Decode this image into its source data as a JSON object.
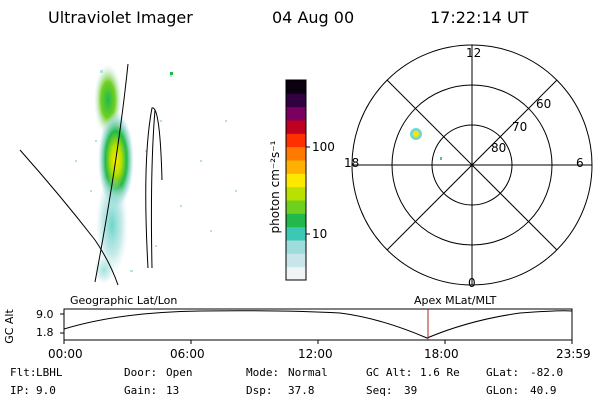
{
  "header": {
    "title": "Ultraviolet Imager",
    "date": "04 Aug 00",
    "time": "17:22:14 UT"
  },
  "colorbar": {
    "unit_label": "photon cm⁻²s⁻¹",
    "ticks": [
      "100",
      "10"
    ],
    "colors": [
      "#f0f4f4",
      "#c8e6ea",
      "#9fdcdc",
      "#3cc8b4",
      "#22b84c",
      "#6fd020",
      "#b8e000",
      "#ffe800",
      "#ffb000",
      "#ff7a00",
      "#ff3000",
      "#c00020",
      "#7a0060",
      "#300040",
      "#0a0010"
    ]
  },
  "polar": {
    "mlt_labels": {
      "top": "12",
      "left": "18",
      "right": "6",
      "bottom": "0"
    },
    "lat_labels": [
      "60",
      "70",
      "80"
    ]
  },
  "timeline": {
    "left_title": "Geographic Lat/Lon",
    "right_title": "Apex MLat/MLT",
    "y_axis_label": "GC Alt",
    "y_ticks": [
      "9.0",
      "1.8"
    ],
    "x_ticks": [
      "00:00",
      "06:00",
      "12:00",
      "18:00",
      "23:59"
    ],
    "current_marker_color": "#b02020"
  },
  "info": {
    "row1": [
      {
        "key": "Flt:",
        "val": "LBHL"
      },
      {
        "key": "Door:",
        "val": "Open"
      },
      {
        "key": "Mode:",
        "val": "Normal"
      },
      {
        "key": "GC Alt:",
        "val": "1.6 Re"
      },
      {
        "key": "GLat:",
        "val": "-82.0"
      }
    ],
    "row2": [
      {
        "key": "IP:",
        "val": "9.0"
      },
      {
        "key": "Gain:",
        "val": "13"
      },
      {
        "key": "Dsp:",
        "val": "37.8"
      },
      {
        "key": "Seq:",
        "val": "39"
      },
      {
        "key": "GLon:",
        "val": "40.9"
      }
    ]
  }
}
